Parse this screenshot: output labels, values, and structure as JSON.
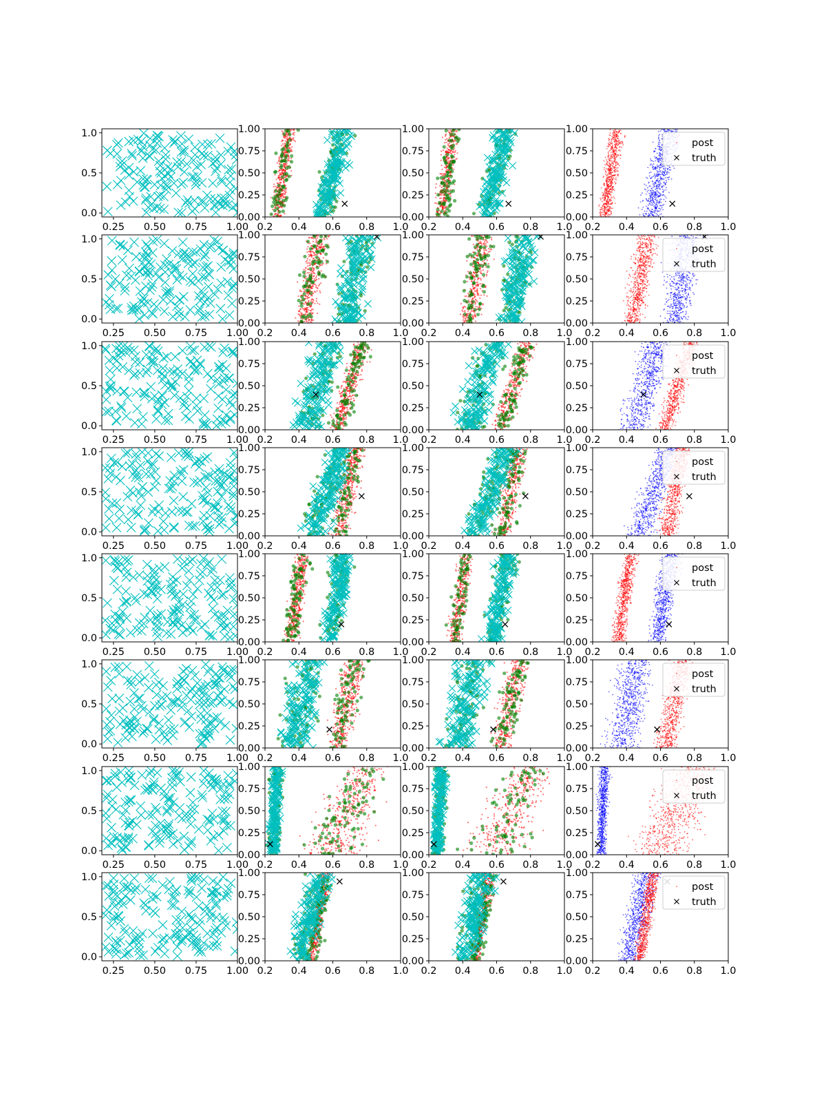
{
  "colors": {
    "cyan": "#00bfbf",
    "green": "#008000",
    "red": "#ff0000",
    "blue": "#0000ff",
    "truth": "#000000",
    "axes": "#000000",
    "legend_border": "#cccccc"
  },
  "legend": {
    "labels": [
      "post",
      "truth"
    ],
    "placement": "upper right",
    "last_column_only": true
  },
  "chart_data": {
    "type": "scatter",
    "layout": {
      "rows": 8,
      "cols": 4
    },
    "columns": [
      {
        "kind": "samples",
        "xlim": [
          0.18,
          1.0
        ],
        "ylim": [
          -0.05,
          1.05
        ],
        "xticks": [
          "0.25",
          "0.50",
          "0.75",
          "1.00"
        ],
        "yticks": [
          "0.0",
          "0.5",
          "1.0"
        ],
        "series": [
          {
            "role": "prior-samples",
            "color": "cyan",
            "marker": "x"
          }
        ]
      },
      {
        "kind": "posterior-compare",
        "xlim": [
          0.2,
          1.0
        ],
        "ylim": [
          0.0,
          1.0
        ],
        "xticks": [
          "0.2",
          "0.4",
          "0.6",
          "0.8",
          "1.0"
        ],
        "yticks": [
          "0.00",
          "0.25",
          "0.50",
          "0.75",
          "1.00"
        ],
        "series": [
          {
            "role": "reference",
            "color": "red",
            "marker": "."
          },
          {
            "role": "approx-1",
            "color": "green",
            "marker": "o"
          },
          {
            "role": "approx-2",
            "color": "cyan",
            "marker": "x"
          }
        ]
      },
      {
        "kind": "posterior-compare",
        "xlim": [
          0.2,
          1.0
        ],
        "ylim": [
          0.0,
          1.0
        ],
        "xticks": [
          "0.2",
          "0.4",
          "0.6",
          "0.8",
          "1.0"
        ],
        "yticks": [
          "0.00",
          "0.25",
          "0.50",
          "0.75",
          "1.00"
        ],
        "series": [
          {
            "role": "reference",
            "color": "red",
            "marker": "."
          },
          {
            "role": "approx-1",
            "color": "green",
            "marker": "o"
          },
          {
            "role": "approx-2",
            "color": "cyan",
            "marker": "x"
          }
        ]
      },
      {
        "kind": "posterior",
        "xlim": [
          0.2,
          1.0
        ],
        "ylim": [
          0.0,
          1.0
        ],
        "xticks": [
          "0.2",
          "0.4",
          "0.6",
          "0.8",
          "1.0"
        ],
        "yticks": [
          "0.00",
          "0.25",
          "0.50",
          "0.75",
          "1.00"
        ],
        "series": [
          {
            "role": "post",
            "color": "red",
            "marker": "."
          },
          {
            "role": "alt",
            "color": "blue",
            "marker": "."
          }
        ]
      }
    ],
    "rows": [
      {
        "truth": [
          0.67,
          0.15
        ],
        "bands": [
          {
            "color": "red",
            "x_at_y0": [
              0.21,
              0.33
            ],
            "x_at_y1": [
              0.28,
              0.41
            ]
          },
          {
            "color": "blue",
            "x_at_y0": [
              0.45,
              0.64
            ],
            "x_at_y1": [
              0.55,
              0.76
            ]
          }
        ]
      },
      {
        "truth": [
          0.86,
          0.98
        ],
        "bands": [
          {
            "color": "red",
            "x_at_y0": [
              0.35,
              0.52
            ],
            "x_at_y1": [
              0.42,
              0.62
            ]
          },
          {
            "color": "blue",
            "x_at_y0": [
              0.57,
              0.8
            ],
            "x_at_y1": [
              0.62,
              0.92
            ]
          }
        ]
      },
      {
        "truth": [
          0.5,
          0.4
        ],
        "bands": [
          {
            "color": "blue",
            "x_at_y0": [
              0.3,
              0.58
            ],
            "x_at_y1": [
              0.45,
              0.72
            ]
          },
          {
            "color": "red",
            "x_at_y0": [
              0.55,
              0.7
            ],
            "x_at_y1": [
              0.7,
              0.86
            ]
          }
        ]
      },
      {
        "truth": [
          0.77,
          0.45
        ],
        "bands": [
          {
            "color": "blue",
            "x_at_y0": [
              0.35,
              0.6
            ],
            "x_at_y1": [
              0.55,
              0.75
            ]
          },
          {
            "color": "red",
            "x_at_y0": [
              0.55,
              0.72
            ],
            "x_at_y1": [
              0.65,
              0.82
            ]
          }
        ]
      },
      {
        "truth": [
          0.65,
          0.2
        ],
        "bands": [
          {
            "color": "red",
            "x_at_y0": [
              0.29,
              0.41
            ],
            "x_at_y1": [
              0.36,
              0.49
            ]
          },
          {
            "color": "blue",
            "x_at_y0": [
              0.5,
              0.66
            ],
            "x_at_y1": [
              0.57,
              0.76
            ]
          }
        ]
      },
      {
        "truth": [
          0.58,
          0.21
        ],
        "bands": [
          {
            "color": "blue",
            "x_at_y0": [
              0.22,
              0.52
            ],
            "x_at_y1": [
              0.3,
              0.62
            ]
          },
          {
            "color": "red",
            "x_at_y0": [
              0.53,
              0.72
            ],
            "x_at_y1": [
              0.63,
              0.84
            ]
          }
        ]
      },
      {
        "truth": [
          0.23,
          0.12
        ],
        "bands": [
          {
            "color": "blue",
            "x_at_y0": [
              0.21,
              0.29
            ],
            "x_at_y1": [
              0.22,
              0.32
            ]
          },
          {
            "color": "red",
            "x_at_y0": [
              0.3,
              0.86
            ],
            "x_at_y1": [
              0.6,
              1.0
            ]
          }
        ]
      },
      {
        "truth": [
          0.64,
          0.9
        ],
        "bands": [
          {
            "color": "blue",
            "x_at_y0": [
              0.32,
              0.5
            ],
            "x_at_y1": [
              0.4,
              0.64
            ]
          },
          {
            "color": "red",
            "x_at_y0": [
              0.43,
              0.52
            ],
            "x_at_y1": [
              0.5,
              0.62
            ]
          }
        ]
      }
    ]
  }
}
